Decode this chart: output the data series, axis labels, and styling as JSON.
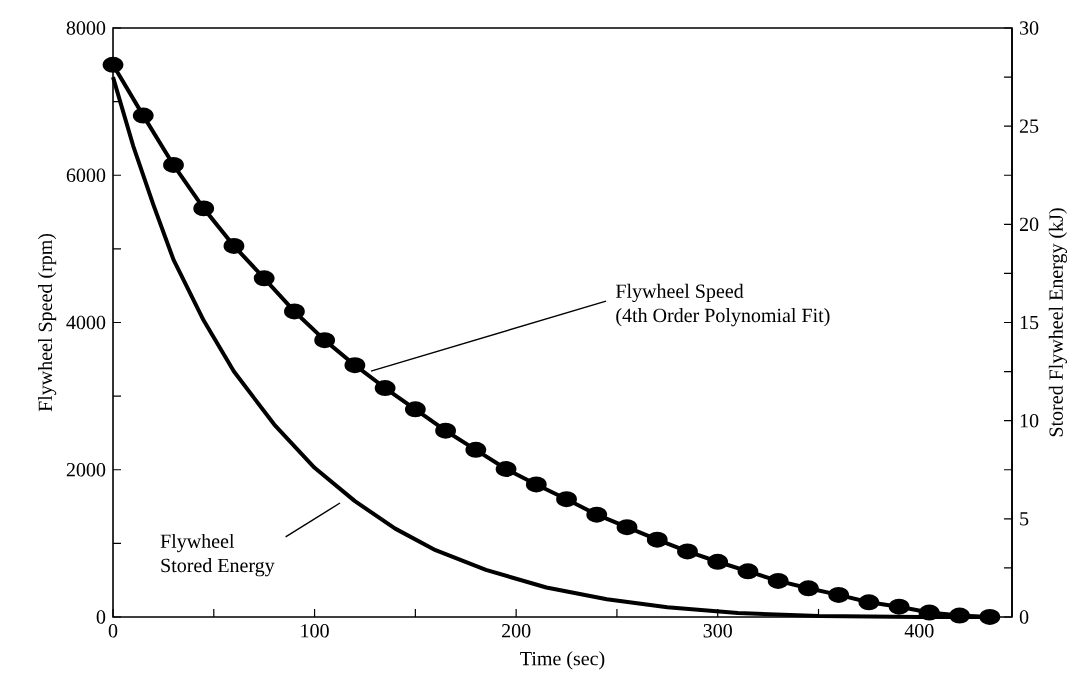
{
  "chart_data": {
    "type": "line",
    "xlabel": "Time (sec)",
    "ylabel": "Flywheel Speed (rpm)",
    "y2label": "Stored Flywheel Energy (kJ)",
    "xlim": [
      0,
      446
    ],
    "ylim": [
      0,
      8000
    ],
    "y2lim": [
      0,
      30
    ],
    "xticks": [
      0,
      {
        "value": 50,
        "label": null
      },
      100,
      {
        "value": 150,
        "label": null
      },
      200,
      {
        "value": 250,
        "label": null
      },
      300,
      {
        "value": 350,
        "label": null
      },
      400
    ],
    "yticks": [
      0,
      {
        "value": 1000,
        "label": null
      },
      2000,
      {
        "value": 3000,
        "label": null
      },
      4000,
      {
        "value": 5000,
        "label": null
      },
      6000,
      {
        "value": 7000,
        "label": null
      },
      8000
    ],
    "y2ticks": [
      0,
      {
        "value": 2.5,
        "label": null
      },
      5,
      {
        "value": 7.5,
        "label": null
      },
      10,
      {
        "value": 12.5,
        "label": null
      },
      15,
      {
        "value": 17.5,
        "label": null
      },
      20,
      {
        "value": 22.5,
        "label": null
      },
      25,
      {
        "value": 27.5,
        "label": null
      },
      30
    ],
    "series": [
      {
        "color": "#000000",
        "marker": "circle",
        "x": [
          0,
          15,
          30,
          45,
          60,
          75,
          90,
          105,
          120,
          135,
          150,
          165,
          180,
          195,
          210,
          225,
          240,
          255,
          270,
          285,
          300,
          315,
          330,
          345,
          360,
          375,
          390,
          405,
          420,
          435
        ],
        "values": [
          7500,
          6810,
          6140,
          5550,
          5040,
          4600,
          4150,
          3760,
          3420,
          3110,
          2820,
          2530,
          2270,
          2010,
          1800,
          1600,
          1390,
          1220,
          1050,
          890,
          750,
          620,
          490,
          390,
          300,
          200,
          140,
          60,
          20,
          0
        ]
      },
      {
        "color": "#000000",
        "marker": "none",
        "axis": "y2",
        "x": [
          0,
          10,
          20,
          30,
          45,
          60,
          80,
          100,
          120,
          140,
          160,
          185,
          215,
          245,
          275,
          310,
          350,
          400,
          440
        ],
        "values": [
          27.5,
          24.0,
          21.0,
          18.2,
          15.1,
          12.5,
          9.8,
          7.6,
          5.9,
          4.5,
          3.4,
          2.4,
          1.5,
          0.9,
          0.5,
          0.2,
          0.05,
          0,
          0
        ]
      }
    ],
    "annotations": [
      {
        "text": "Flywheel Speed",
        "x": 128,
        "y": 3340
      },
      "(4th Order Polynomial Fit)",
      "Flywheel",
      "Stored Energy"
    ]
  }
}
